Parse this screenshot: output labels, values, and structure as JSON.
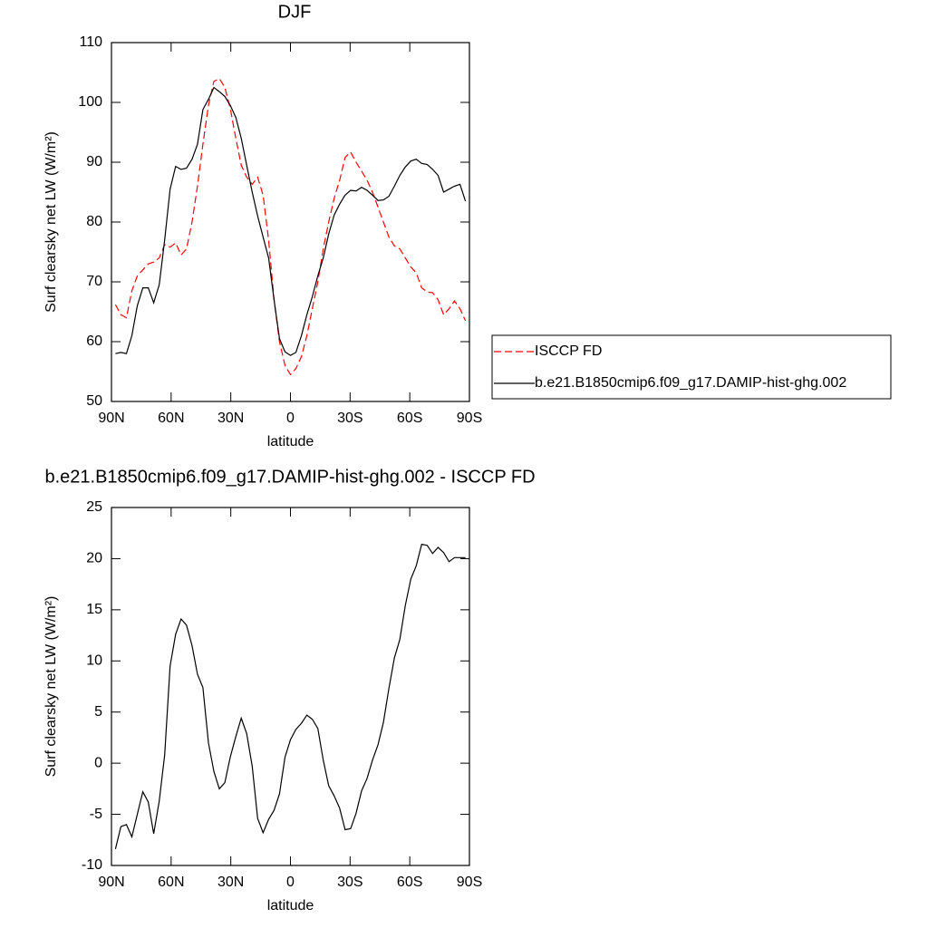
{
  "chart_data": [
    {
      "type": "line",
      "title": "DJF",
      "xlabel": "latitude",
      "ylabel": "Surf clearsky net LW (W/m²)",
      "xlim": [
        90,
        -90
      ],
      "ylim": [
        50,
        110
      ],
      "xticks": [
        {
          "value": 90,
          "label": "90N"
        },
        {
          "value": 60,
          "label": "60N"
        },
        {
          "value": 30,
          "label": "30N"
        },
        0,
        {
          "value": -30,
          "label": "30S"
        },
        {
          "value": -60,
          "label": "60S"
        },
        {
          "value": -90,
          "label": "90S"
        }
      ],
      "yticks": [
        50,
        60,
        70,
        80,
        90,
        100,
        110
      ],
      "legend": "right",
      "x": [
        88,
        85.25,
        82.5,
        79.75,
        77,
        74.25,
        71.5,
        68.75,
        66,
        63.25,
        60.5,
        57.75,
        55,
        52.25,
        49.5,
        46.75,
        44,
        41.25,
        38.5,
        35.75,
        33,
        30.25,
        27.5,
        24.75,
        22,
        19.25,
        16.5,
        13.75,
        11,
        8.25,
        5.5,
        2.75,
        0,
        -2.75,
        -5.5,
        -8.25,
        -11,
        -13.75,
        -16.5,
        -19.25,
        -22,
        -24.75,
        -27.5,
        -30.25,
        -33,
        -35.75,
        -38.5,
        -41.25,
        -44,
        -46.75,
        -49.5,
        -52.25,
        -55,
        -57.75,
        -60.5,
        -63.25,
        -66,
        -68.75,
        -71.5,
        -74.25,
        -77,
        -79.75,
        -82.5,
        -85.25,
        -88
      ],
      "series": [
        {
          "name": "ISCCP FD",
          "color": "#ff0000",
          "dash": "dashed",
          "values": [
            66.2,
            64.5,
            64,
            68.5,
            71,
            72,
            73,
            73.3,
            74,
            76.2,
            75.8,
            76.5,
            74.5,
            75.5,
            80,
            86,
            93,
            99.5,
            103.5,
            104,
            102.5,
            99,
            94,
            89.5,
            87.5,
            86.3,
            87.5,
            84.5,
            77,
            67,
            60,
            56,
            54.5,
            55.5,
            57.5,
            61,
            65.5,
            70,
            75.5,
            80,
            84,
            87,
            90.8,
            91.7,
            90,
            88.5,
            87,
            85,
            82.5,
            80,
            77.5,
            76,
            75.5,
            74,
            72.5,
            71.5,
            69,
            68.3,
            68.2,
            67,
            64.5,
            65.5,
            66.8,
            65.5,
            63.5
          ]
        },
        {
          "name": "b.e21.B1850cmip6.f09_g17.DAMIP-hist-ghg.002",
          "color": "#000000",
          "values": [
            58,
            58.2,
            58,
            61,
            66,
            69,
            69,
            66.5,
            69.5,
            77,
            85.5,
            89.3,
            88.8,
            89,
            90.5,
            93,
            98.8,
            100.5,
            102.5,
            101.8,
            101,
            99.5,
            97.5,
            94,
            89.5,
            85,
            81,
            77.5,
            74,
            67,
            60.5,
            58.3,
            57.7,
            58.2,
            61,
            64.5,
            67.5,
            71,
            74,
            78,
            81.2,
            83,
            84.5,
            85.3,
            85.2,
            85.8,
            85.3,
            84.5,
            83.6,
            83.7,
            84.3,
            86,
            87.8,
            89.2,
            90.2,
            90.5,
            89.8,
            89.6,
            88.8,
            87.8,
            85,
            85.5,
            86,
            86.3,
            83.5
          ]
        }
      ]
    },
    {
      "type": "line",
      "title": "b.e21.B1850cmip6.f09_g17.DAMIP-hist-ghg.002 - ISCCP FD",
      "xlabel": "latitude",
      "ylabel": "Surf clearsky net LW (W/m²)",
      "xlim": [
        90,
        -90
      ],
      "ylim": [
        -10,
        25
      ],
      "xticks": [
        {
          "value": 90,
          "label": "90N"
        },
        {
          "value": 60,
          "label": "60N"
        },
        {
          "value": 30,
          "label": "30N"
        },
        0,
        {
          "value": -30,
          "label": "30S"
        },
        {
          "value": -60,
          "label": "60S"
        },
        {
          "value": -90,
          "label": "90S"
        }
      ],
      "yticks": [
        -10,
        -5,
        0,
        5,
        10,
        15,
        20,
        25
      ],
      "x": [
        88,
        85.25,
        82.5,
        79.75,
        77,
        74.25,
        71.5,
        68.75,
        66,
        63.25,
        60.5,
        57.75,
        55,
        52.25,
        49.5,
        46.75,
        44,
        41.25,
        38.5,
        35.75,
        33,
        30.25,
        27.5,
        24.75,
        22,
        19.25,
        16.5,
        13.75,
        11,
        8.25,
        5.5,
        2.75,
        0,
        -2.75,
        -5.5,
        -8.25,
        -11,
        -13.75,
        -16.5,
        -19.25,
        -22,
        -24.75,
        -27.5,
        -30.25,
        -33,
        -35.75,
        -38.5,
        -41.25,
        -44,
        -46.75,
        -49.5,
        -52.25,
        -55,
        -57.75,
        -60.5,
        -63.25,
        -66,
        -68.75,
        -71.5,
        -74.25,
        -77,
        -79.75,
        -82.5,
        -85.25,
        -88
      ],
      "series": [
        {
          "color": "#000000",
          "values": [
            -8.4,
            -6.2,
            -6,
            -7.2,
            -5,
            -2.8,
            -3.8,
            -6.9,
            -3.7,
            0.8,
            9.5,
            12.6,
            14.1,
            13.5,
            11.5,
            8.7,
            7.4,
            2,
            -0.8,
            -2.5,
            -1.9,
            0.6,
            2.6,
            4.4,
            2.9,
            -0.3,
            -5.4,
            -6.8,
            -5.5,
            -4.6,
            -3,
            0.6,
            2.3,
            3.3,
            3.9,
            4.7,
            4.3,
            3.4,
            0.3,
            -2.2,
            -3.2,
            -4.4,
            -6.5,
            -6.4,
            -4.9,
            -2.7,
            -1.5,
            0.3,
            1.8,
            4,
            7.3,
            10.3,
            12.1,
            15.4,
            18,
            19.3,
            21.4,
            21.3,
            20.5,
            21.1,
            20.6,
            19.7,
            20.1,
            20.1,
            20.1
          ]
        }
      ]
    }
  ]
}
